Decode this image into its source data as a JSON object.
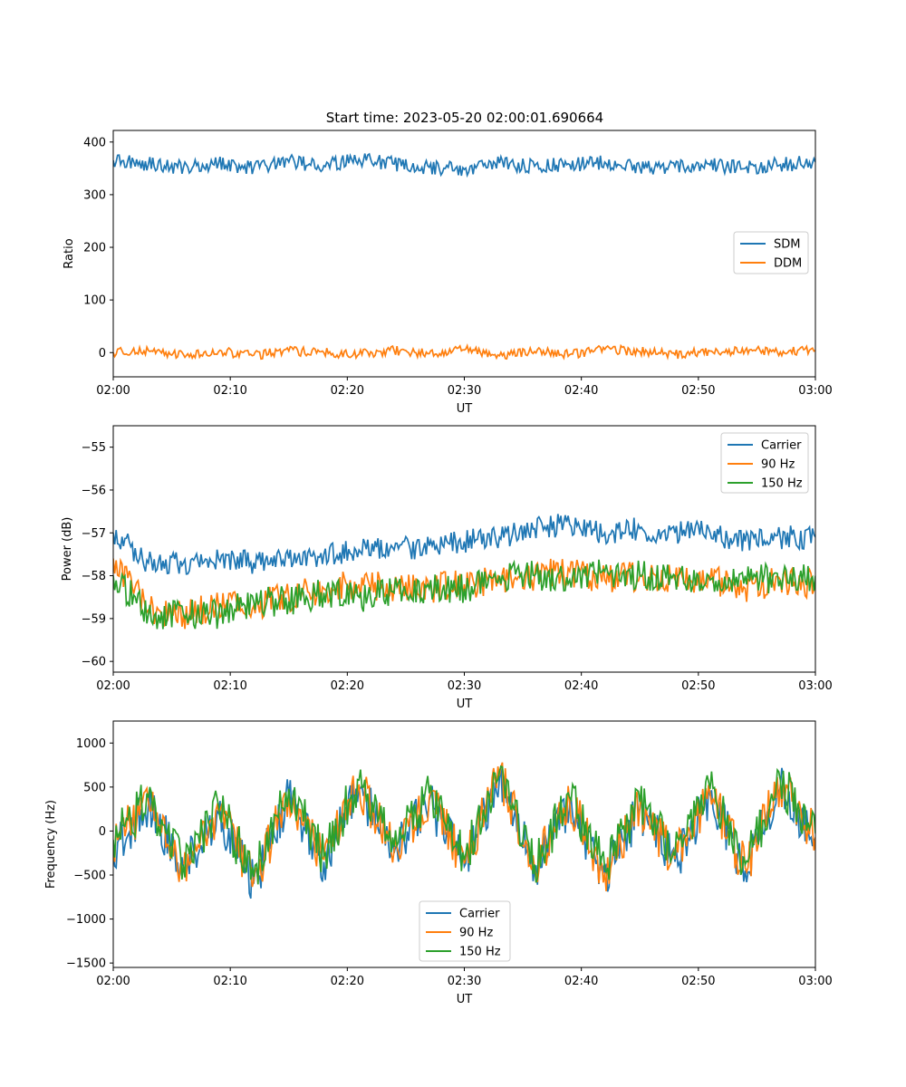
{
  "figure": {
    "title": "Start time: 2023-05-20 02:00:01.690664"
  },
  "colors": {
    "blue": "#1f77b4",
    "orange": "#ff7f0e",
    "green": "#2ca02c"
  },
  "chart_data": [
    {
      "type": "line",
      "title": "Start time: 2023-05-20 02:00:01.690664",
      "xlabel": "UT",
      "ylabel": "Ratio",
      "x_tick_labels": [
        "02:00",
        "02:10",
        "02:20",
        "02:30",
        "02:40",
        "02:50",
        "03:00"
      ],
      "xlim": [
        "02:00",
        "03:00"
      ],
      "ylim": [
        -46,
        422
      ],
      "y_ticks": [
        0,
        100,
        200,
        300,
        400
      ],
      "legend": {
        "position": "center-right",
        "entries": [
          "SDM",
          "DDM"
        ]
      },
      "x": [
        "02:00",
        "02:03",
        "02:06",
        "02:09",
        "02:12",
        "02:15",
        "02:18",
        "02:21",
        "02:24",
        "02:27",
        "02:30",
        "02:33",
        "02:36",
        "02:39",
        "02:42",
        "02:45",
        "02:48",
        "02:51",
        "02:54",
        "02:57",
        "03:00"
      ],
      "series": [
        {
          "name": "SDM",
          "color": "blue",
          "values": [
            365,
            358,
            352,
            360,
            350,
            362,
            355,
            368,
            358,
            352,
            348,
            360,
            354,
            357,
            362,
            350,
            353,
            356,
            350,
            357,
            362
          ]
        },
        {
          "name": "DDM",
          "color": "orange",
          "values": [
            0,
            4,
            -4,
            2,
            -5,
            3,
            0,
            -3,
            4,
            -2,
            5,
            -6,
            2,
            -4,
            6,
            2,
            -4,
            3,
            4,
            1,
            4
          ]
        }
      ]
    },
    {
      "type": "line",
      "xlabel": "UT",
      "ylabel": "Power (dB)",
      "x_tick_labels": [
        "02:00",
        "02:10",
        "02:20",
        "02:30",
        "02:40",
        "02:50",
        "03:00"
      ],
      "xlim": [
        "02:00",
        "03:00"
      ],
      "ylim": [
        -60.25,
        -54.5
      ],
      "y_ticks": [
        -60,
        -59,
        -58,
        -57,
        -56,
        -55
      ],
      "legend": {
        "position": "top-right",
        "entries": [
          "Carrier",
          "90 Hz",
          "150 Hz"
        ]
      },
      "x": [
        "02:00",
        "02:03",
        "02:06",
        "02:09",
        "02:12",
        "02:15",
        "02:18",
        "02:21",
        "02:24",
        "02:27",
        "02:30",
        "02:33",
        "02:36",
        "02:39",
        "02:42",
        "02:45",
        "02:48",
        "02:51",
        "02:54",
        "02:57",
        "03:00"
      ],
      "series": [
        {
          "name": "Carrier",
          "color": "blue",
          "values": [
            -57.0,
            -57.7,
            -57.7,
            -57.6,
            -57.7,
            -57.6,
            -57.5,
            -57.4,
            -57.4,
            -57.3,
            -57.2,
            -57.1,
            -56.9,
            -56.8,
            -57.0,
            -56.9,
            -57.0,
            -57.0,
            -57.2,
            -57.1,
            -57.1
          ]
        },
        {
          "name": "90 Hz",
          "color": "orange",
          "values": [
            -57.6,
            -58.8,
            -58.9,
            -58.7,
            -58.7,
            -58.5,
            -58.3,
            -58.2,
            -58.3,
            -58.3,
            -58.2,
            -58.1,
            -58.0,
            -57.9,
            -58.1,
            -58.0,
            -58.1,
            -58.1,
            -58.3,
            -58.1,
            -58.2
          ]
        },
        {
          "name": "150 Hz",
          "color": "green",
          "values": [
            -58.0,
            -58.9,
            -58.9,
            -58.9,
            -58.6,
            -58.6,
            -58.4,
            -58.5,
            -58.4,
            -58.3,
            -58.3,
            -58.0,
            -58.0,
            -58.1,
            -57.9,
            -58.0,
            -58.0,
            -58.1,
            -58.0,
            -58.1,
            -58.0
          ]
        }
      ]
    },
    {
      "type": "line",
      "xlabel": "UT",
      "ylabel": "Frequency (Hz)",
      "x_tick_labels": [
        "02:00",
        "02:10",
        "02:20",
        "02:30",
        "02:40",
        "02:50",
        "03:00"
      ],
      "xlim": [
        "02:00",
        "03:00"
      ],
      "ylim": [
        -1550,
        1250
      ],
      "y_ticks": [
        -1500,
        -1000,
        -500,
        0,
        500,
        1000
      ],
      "legend": {
        "position": "bottom-center",
        "entries": [
          "Carrier",
          "90 Hz",
          "150 Hz"
        ]
      },
      "x": [
        "02:00",
        "02:03",
        "02:06",
        "02:09",
        "02:12",
        "02:15",
        "02:18",
        "02:21",
        "02:24",
        "02:27",
        "02:30",
        "02:33",
        "02:36",
        "02:39",
        "02:42",
        "02:45",
        "02:48",
        "02:51",
        "02:54",
        "02:57",
        "03:00"
      ],
      "series": [
        {
          "name": "Carrier",
          "color": "blue",
          "values": [
            -200,
            300,
            -450,
            200,
            -600,
            400,
            -350,
            500,
            -250,
            350,
            -400,
            600,
            -450,
            300,
            -500,
            250,
            -350,
            400,
            -450,
            500,
            -100
          ]
        },
        {
          "name": "90 Hz",
          "color": "orange",
          "values": [
            -150,
            330,
            -420,
            230,
            -570,
            430,
            -320,
            530,
            -220,
            380,
            -370,
            630,
            -420,
            330,
            -470,
            280,
            -320,
            430,
            -420,
            530,
            -70
          ]
        },
        {
          "name": "150 Hz",
          "color": "green",
          "values": [
            -100,
            380,
            -380,
            280,
            -520,
            480,
            -280,
            580,
            -180,
            430,
            -330,
            680,
            -380,
            380,
            -430,
            330,
            -280,
            480,
            -380,
            580,
            -30
          ]
        }
      ]
    }
  ]
}
